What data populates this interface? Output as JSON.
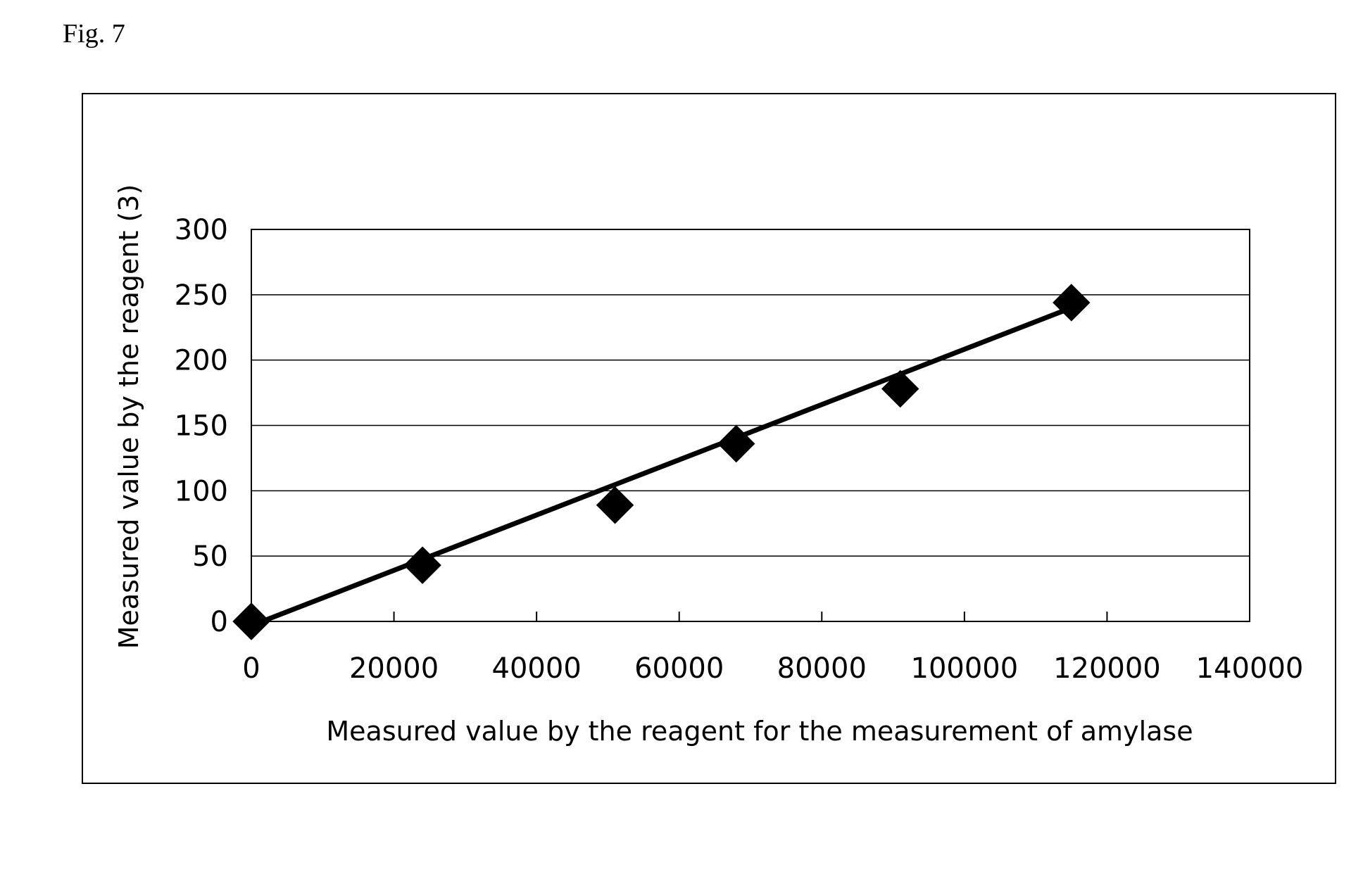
{
  "figure_label": "Fig. 7",
  "chart_data": {
    "type": "scatter",
    "title": "",
    "xlabel": "Measured value by the reagent for the measurement of amylase",
    "ylabel": "Measured value by the reagent (3)",
    "xlim": [
      0,
      140000
    ],
    "ylim": [
      0,
      300
    ],
    "x_ticks": [
      "0",
      "20000",
      "40000",
      "60000",
      "80000",
      "100000",
      "120000",
      "140000"
    ],
    "y_ticks": [
      "0",
      "50",
      "100",
      "150",
      "200",
      "250",
      "300"
    ],
    "x_tick_values": [
      0,
      20000,
      40000,
      60000,
      80000,
      100000,
      120000,
      140000
    ],
    "y_tick_values": [
      0,
      50,
      100,
      150,
      200,
      250,
      300
    ],
    "grid": "horizontal",
    "marker": "diamond",
    "series": [
      {
        "x": [
          0,
          24000,
          51000,
          68000,
          91000,
          115000
        ],
        "y": [
          0,
          43,
          89,
          136,
          178,
          244
        ]
      }
    ],
    "trendline": {
      "type": "linear",
      "x": [
        1500,
        115000
      ],
      "y": [
        0,
        240
      ]
    }
  }
}
